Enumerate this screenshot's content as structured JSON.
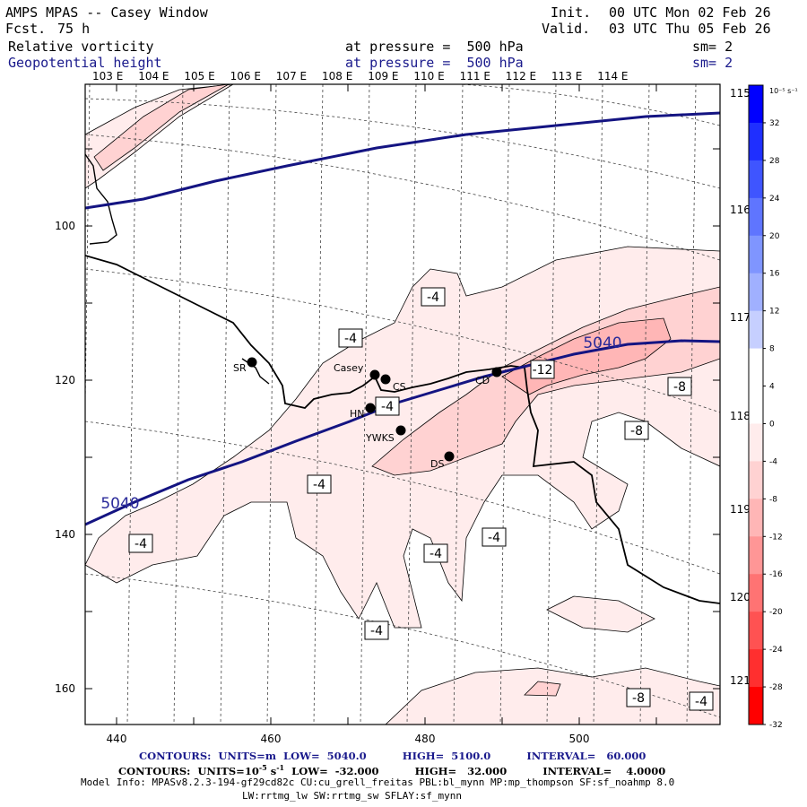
{
  "header": {
    "title": "AMPS MPAS -- Casey Window",
    "fcst_label": "Fcst.",
    "fcst_value": "75 h",
    "init_label": "Init.",
    "init_value": "00 UTC Mon 02 Feb 26",
    "valid_label": "Valid.",
    "valid_value": "03 UTC Thu 05 Feb 26",
    "field1_name": "Relative vorticity",
    "field1_level": "at pressure =  500 hPa",
    "field1_sm": "sm= 2",
    "field2_name": "Geopotential height",
    "field2_level": "at pressure =  500 hPa",
    "field2_sm": "sm= 2"
  },
  "map": {
    "top_lon_labels": [
      "103 E",
      "104 E",
      "105 E",
      "106 E",
      "107 E",
      "108 E",
      "109 E",
      "110 E",
      "111 E",
      "112 E",
      "113 E",
      "114 E"
    ],
    "right_lat_labels": [
      "115 E",
      "116 E",
      "117 E",
      "118 E",
      "119 E",
      "120 E",
      "121 E"
    ],
    "x_ticks": [
      "440",
      "460",
      "480",
      "500"
    ],
    "y_ticks": [
      "100",
      "120",
      "140",
      "160"
    ],
    "stations": [
      {
        "name": "SR"
      },
      {
        "name": "Casey"
      },
      {
        "name": "CS"
      },
      {
        "name": "HN"
      },
      {
        "name": "YWKS"
      },
      {
        "name": "DS"
      },
      {
        "name": "CD"
      }
    ],
    "contour_labels": [
      "-4",
      "-4",
      "-4",
      "-4",
      "-4",
      "-4",
      "-4",
      "-4",
      "-4",
      "-8",
      "-8",
      "-8",
      "-12"
    ],
    "height_labels": [
      "5040",
      "5040"
    ]
  },
  "colorbar": {
    "units": "10⁻⁵ s⁻¹",
    "labels": [
      "32",
      "28",
      "24",
      "20",
      "16",
      "12",
      "8",
      "4",
      "0",
      "-4",
      "-8",
      "-12",
      "-16",
      "-20",
      "-24",
      "-28",
      "-32"
    ],
    "colors": [
      "#0000ff",
      "#1f2fff",
      "#3f55ff",
      "#5f75ff",
      "#7f95ff",
      "#a0b0ff",
      "#c6cfff",
      "#ffffff",
      "#ffffff",
      "#ffecec",
      "#ffd2d2",
      "#ffb6b6",
      "#ff9696",
      "#ff7373",
      "#ff5252",
      "#ff2f2f",
      "#ff0000"
    ]
  },
  "footer": {
    "line1": "CONTOURS:  UNITS=m  LOW=  5040.0          HIGH=  5100.0          INTERVAL=   60.000",
    "line2_a": "CONTOURS:  UNITS=10",
    "line2_b": "s",
    "line2_c": "  LOW=  -32.000          HIGH=   32.000          INTERVAL=    4.0000",
    "line3": "Model Info: MPASv8.2.3-194-gf29cd82c CU:cu_grell_freitas PBL:bl_mynn MP:mp_thompson SF:sf_noahmp 8.0",
    "line4": "LW:rrtmg_lw SW:rrtmg_sw SFLAY:sf_mynn"
  }
}
